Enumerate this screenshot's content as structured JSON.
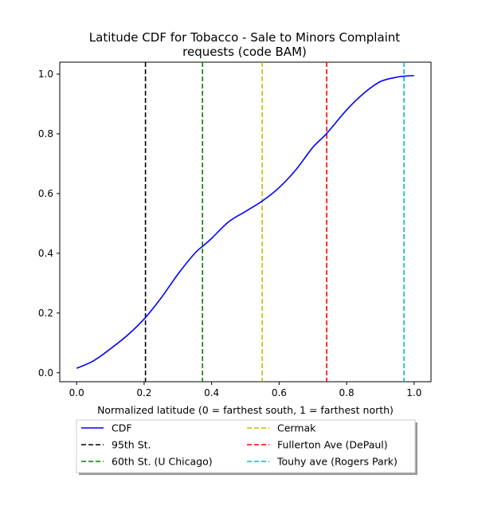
{
  "chart_data": {
    "type": "line",
    "title_lines": [
      "Latitude CDF for Tobacco - Sale to Minors Complaint",
      "requests (code BAM)"
    ],
    "xlabel": "Normalized latitude (0 = farthest south, 1 = farthest north)",
    "ylabel": "",
    "xlim": [
      -0.05,
      1.05
    ],
    "ylim": [
      -0.03,
      1.04
    ],
    "xticks": [
      0.0,
      0.2,
      0.4,
      0.6,
      0.8,
      1.0
    ],
    "xtick_labels": [
      "0.0",
      "0.2",
      "0.4",
      "0.6",
      "0.8",
      "1.0"
    ],
    "yticks": [
      0.0,
      0.2,
      0.4,
      0.6,
      0.8,
      1.0
    ],
    "ytick_labels": [
      "0.0",
      "0.2",
      "0.4",
      "0.6",
      "0.8",
      "1.0"
    ],
    "grid": false,
    "legend_position": "below-plot",
    "series": [
      {
        "name": "CDF",
        "color": "#0000ff",
        "style": "solid",
        "x": [
          0.0,
          0.05,
          0.1,
          0.15,
          0.2,
          0.25,
          0.3,
          0.35,
          0.375,
          0.4,
          0.45,
          0.5,
          0.55,
          0.6,
          0.65,
          0.7,
          0.74,
          0.8,
          0.85,
          0.9,
          0.95,
          0.97,
          1.0
        ],
        "y": [
          0.015,
          0.04,
          0.08,
          0.125,
          0.18,
          0.25,
          0.33,
          0.4,
          0.425,
          0.45,
          0.505,
          0.54,
          0.575,
          0.62,
          0.68,
          0.755,
          0.8,
          0.88,
          0.935,
          0.975,
          0.99,
          0.993,
          0.995
        ]
      }
    ],
    "vlines": [
      {
        "name": "95th St.",
        "x": 0.204,
        "color": "#000000"
      },
      {
        "name": "60th St. (U Chicago)",
        "x": 0.373,
        "color": "#008000"
      },
      {
        "name": "Cermak",
        "x": 0.55,
        "color": "#bfbf00"
      },
      {
        "name": "Fullerton Ave (DePaul)",
        "x": 0.741,
        "color": "#ff0000"
      },
      {
        "name": "Touhy ave (Rogers Park)",
        "x": 0.97,
        "color": "#00bfbf"
      }
    ]
  }
}
